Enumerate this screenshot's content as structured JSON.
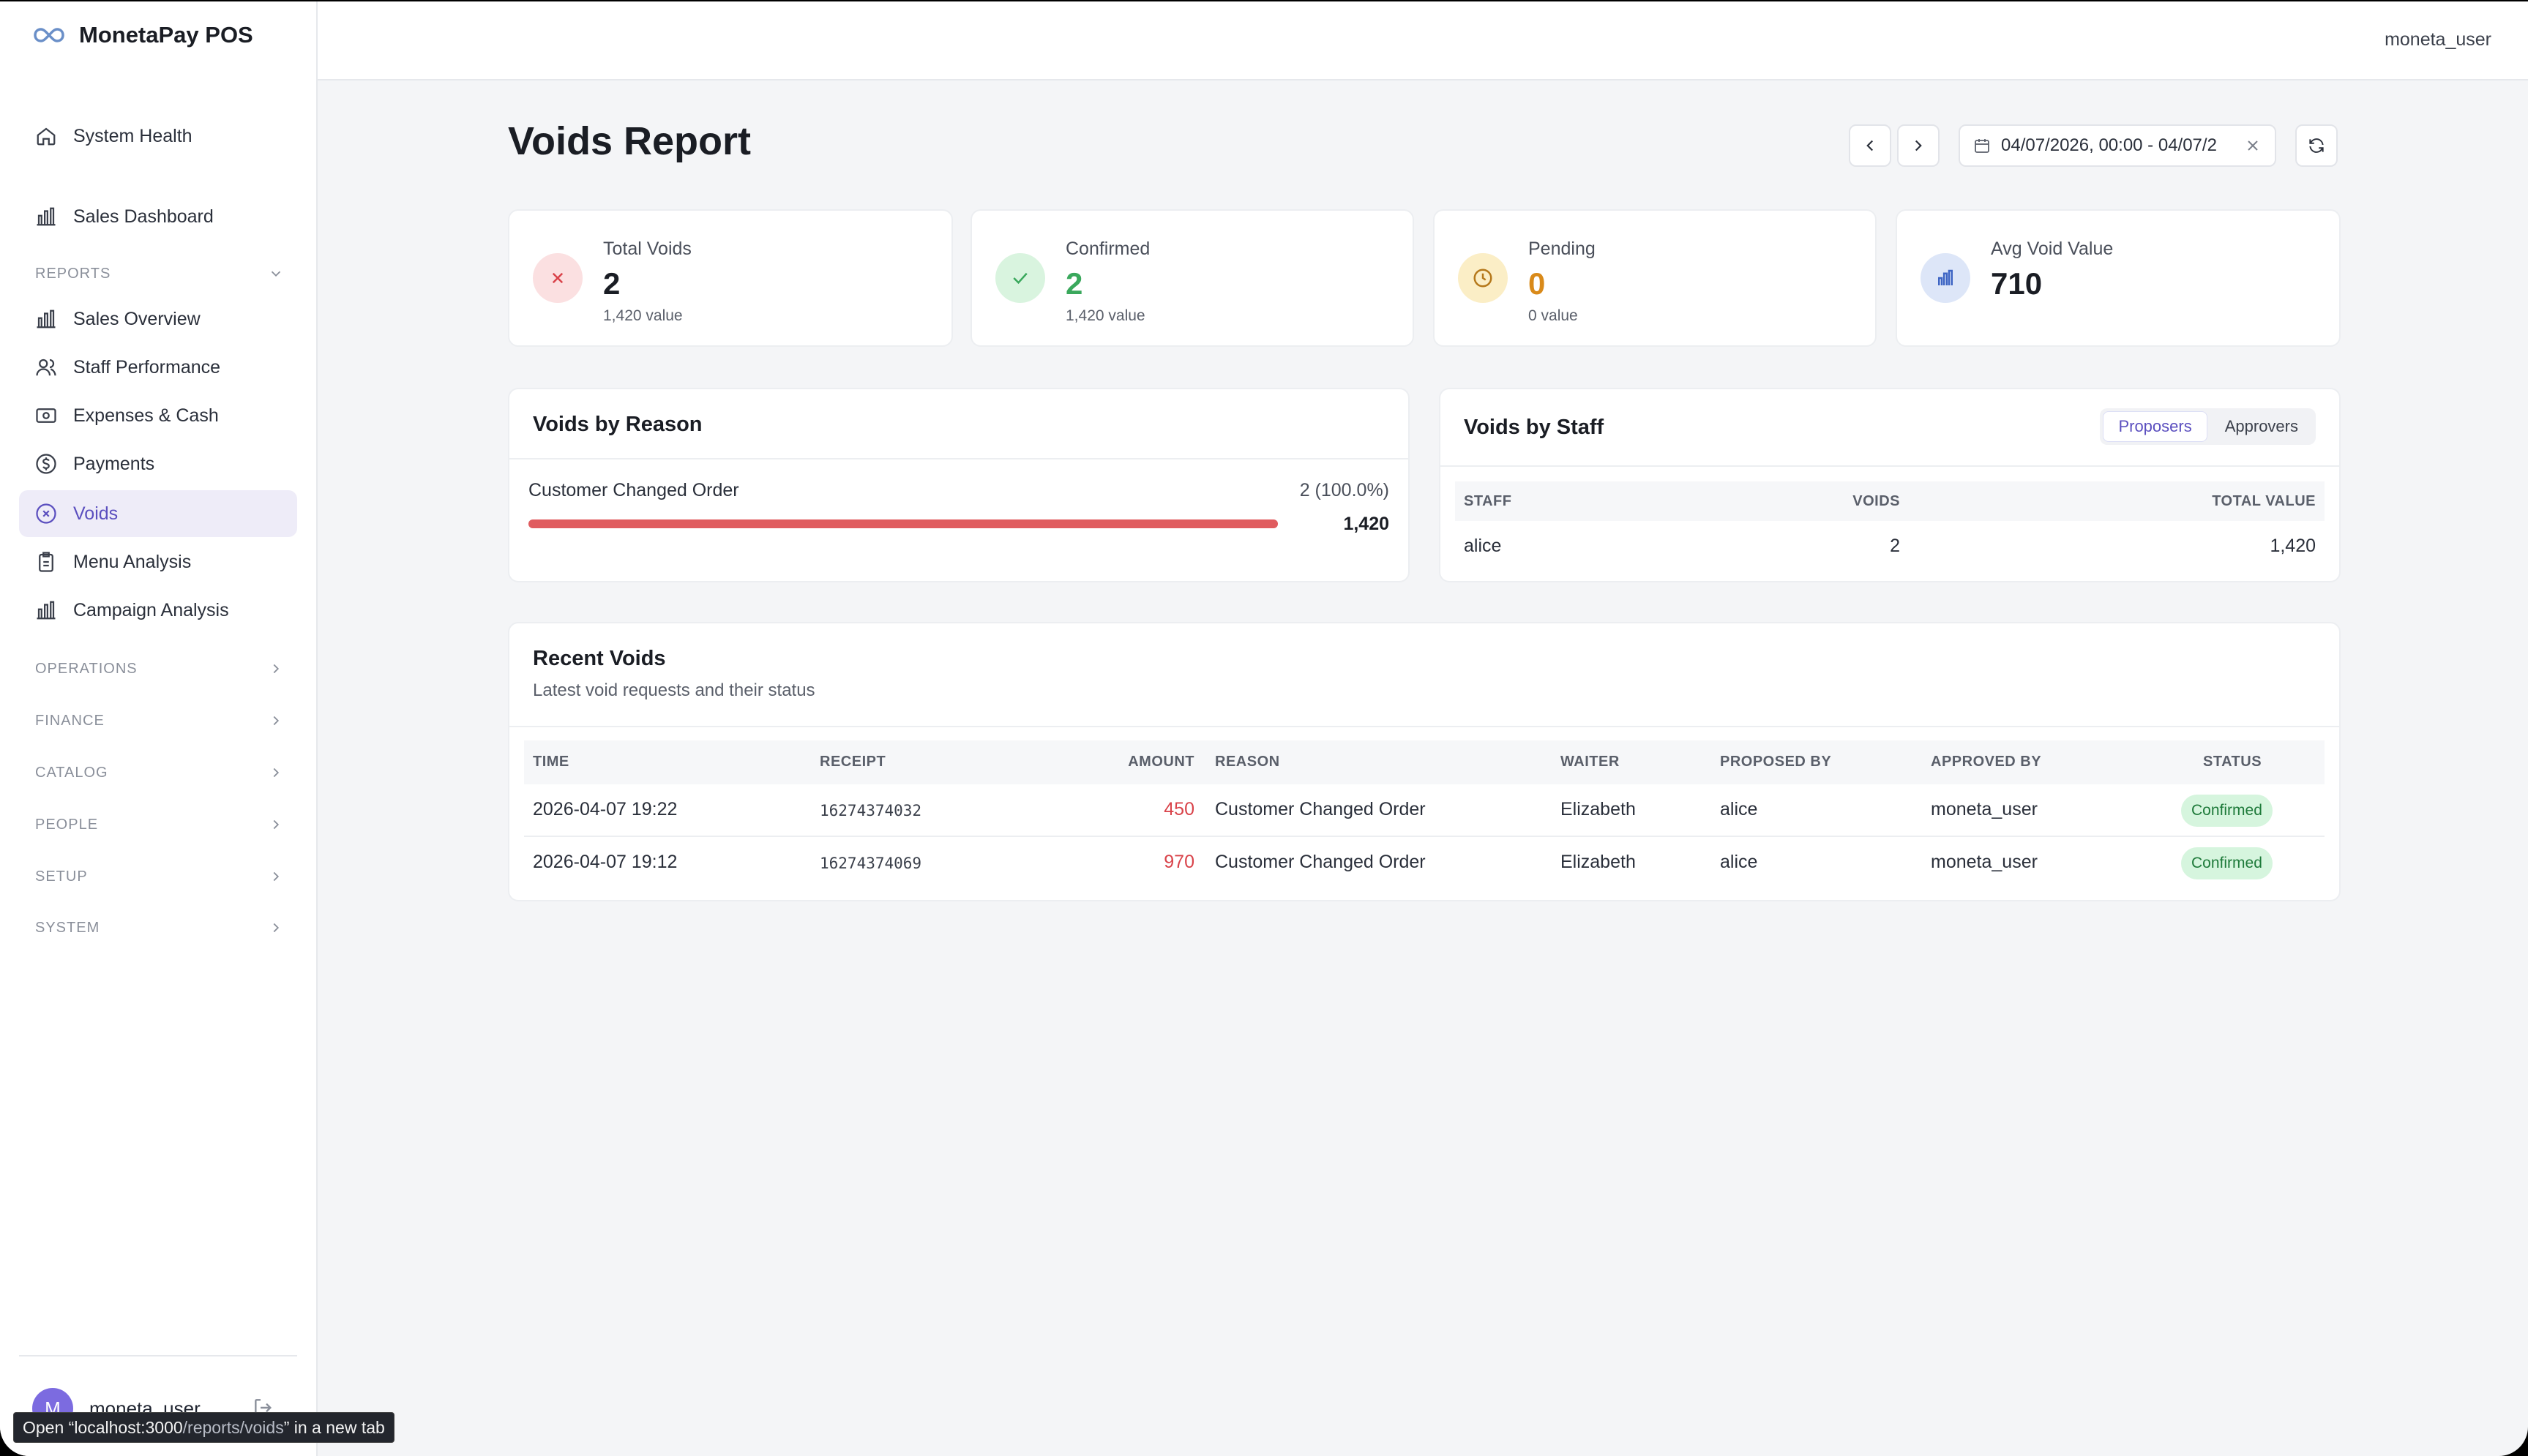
{
  "app": {
    "name": "MonetaPay POS"
  },
  "sidebar": {
    "top_items": [
      {
        "label": "System Health",
        "icon": "home-icon"
      },
      {
        "label": "Sales Dashboard",
        "icon": "bar-chart-icon"
      }
    ],
    "reports_section": "REPORTS",
    "report_items": [
      {
        "label": "Sales Overview",
        "icon": "bar-chart-icon"
      },
      {
        "label": "Staff Performance",
        "icon": "users-icon"
      },
      {
        "label": "Expenses & Cash",
        "icon": "cash-icon"
      },
      {
        "label": "Payments",
        "icon": "dollar-circle-icon"
      },
      {
        "label": "Voids",
        "icon": "x-circle-icon",
        "active": true
      },
      {
        "label": "Menu Analysis",
        "icon": "clipboard-icon"
      },
      {
        "label": "Campaign Analysis",
        "icon": "bar-chart-icon"
      }
    ],
    "sections": [
      "OPERATIONS",
      "FINANCE",
      "CATALOG",
      "PEOPLE",
      "SETUP",
      "SYSTEM"
    ],
    "user": {
      "initial": "M",
      "name": "moneta_user"
    }
  },
  "tooltip": {
    "prefix": "Open “localhost:3000",
    "path": "/reports/voids",
    "suffix": "” in a new tab"
  },
  "topbar": {
    "user": "moneta_user"
  },
  "page": {
    "title": "Voids Report",
    "date_range": "04/07/2026, 00:00 - 04/07/2"
  },
  "stats": [
    {
      "label": "Total Voids",
      "value": "2",
      "sub": "1,420 value",
      "color": "#1a1d24"
    },
    {
      "label": "Confirmed",
      "value": "2",
      "sub": "1,420 value",
      "color": "#3aa85c"
    },
    {
      "label": "Pending",
      "value": "0",
      "sub": "0 value",
      "color": "#d98a1a"
    },
    {
      "label": "Avg Void Value",
      "value": "710",
      "sub": "",
      "color": "#1a1d24"
    }
  ],
  "voids_by_reason": {
    "title": "Voids by Reason",
    "items": [
      {
        "reason": "Customer Changed Order",
        "count_pct": "2 (100.0%)",
        "value": "1,420",
        "fraction": 1.0
      }
    ]
  },
  "voids_by_staff": {
    "title": "Voids by Staff",
    "tabs": [
      "Proposers",
      "Approvers"
    ],
    "active_tab": "Proposers",
    "columns": [
      "STAFF",
      "VOIDS",
      "TOTAL VALUE"
    ],
    "rows": [
      {
        "staff": "alice",
        "voids": "2",
        "total": "1,420"
      }
    ]
  },
  "recent_voids": {
    "title": "Recent Voids",
    "subtitle": "Latest void requests and their status",
    "columns": [
      "TIME",
      "RECEIPT",
      "AMOUNT",
      "REASON",
      "WAITER",
      "PROPOSED BY",
      "APPROVED BY",
      "STATUS"
    ],
    "rows": [
      {
        "time": "2026-04-07 19:22",
        "receipt": "16274374032",
        "amount": "450",
        "reason": "Customer Changed Order",
        "waiter": "Elizabeth",
        "proposed_by": "alice",
        "approved_by": "moneta_user",
        "status": "Confirmed"
      },
      {
        "time": "2026-04-07 19:12",
        "receipt": "16274374069",
        "amount": "970",
        "reason": "Customer Changed Order",
        "waiter": "Elizabeth",
        "proposed_by": "alice",
        "approved_by": "moneta_user",
        "status": "Confirmed"
      }
    ]
  }
}
